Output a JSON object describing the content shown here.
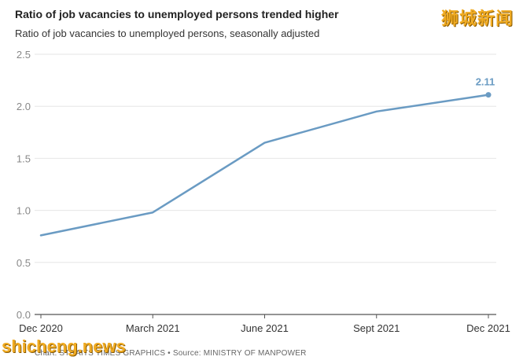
{
  "watermark_top": "狮城新闻",
  "watermark_bottom": "shicheng.news",
  "credit": "Chart: STRAITS TIMES GRAPHICS • Source: MINISTRY OF MANPOWER",
  "colors": {
    "line": "#6a9bc3",
    "grid": "#e6e6e6",
    "axis": "#555555",
    "tick_text": "#888888",
    "label_text": "#6a9bc3"
  },
  "chart_data": {
    "type": "line",
    "title": "Ratio of job vacancies to unemployed persons trended higher",
    "subtitle": "Ratio of job vacancies to unemployed persons, seasonally adjusted",
    "xlabel": "",
    "ylabel": "",
    "categories": [
      "Dec 2020",
      "March 2021",
      "June 2021",
      "Sept 2021",
      "Dec 2021"
    ],
    "series": [
      {
        "values": [
          0.76,
          0.98,
          1.65,
          1.95,
          2.11
        ]
      }
    ],
    "ylim": [
      0,
      2.5
    ],
    "yticks": [
      "0.0",
      "0.5",
      "1.0",
      "1.5",
      "2.0",
      "2.5"
    ],
    "grid": true,
    "annotations": [
      {
        "category": "Dec 2021",
        "text": "2.11"
      }
    ]
  }
}
